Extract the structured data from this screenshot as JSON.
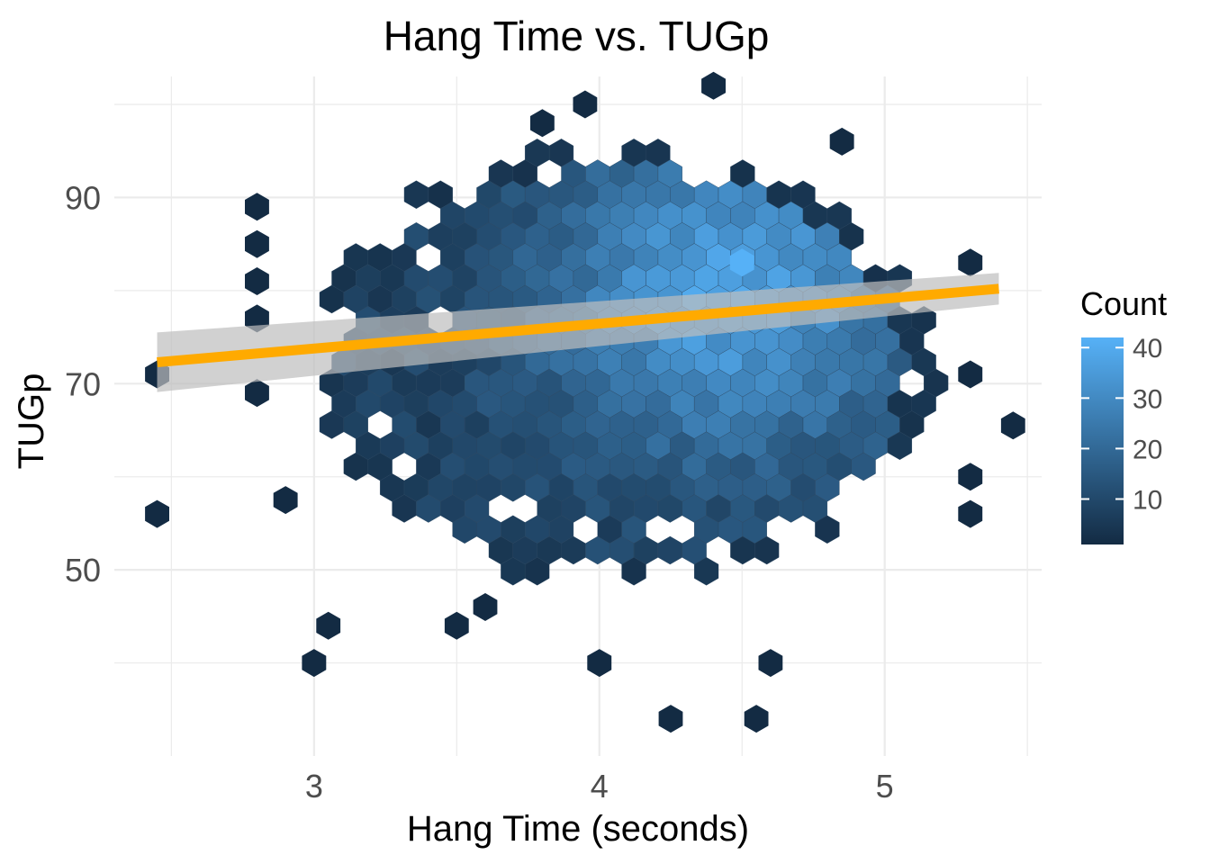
{
  "chart_data": {
    "type": "hexbin",
    "title": "Hang Time vs. TUGp",
    "xlabel": "Hang Time (seconds)",
    "ylabel": "TUGp",
    "xlim": [
      2.3,
      5.55
    ],
    "ylim": [
      30,
      103
    ],
    "x_ticks": [
      3,
      4,
      5
    ],
    "y_ticks": [
      50,
      70,
      90
    ],
    "x_tick_labels": [
      "3",
      "4",
      "5"
    ],
    "y_tick_labels": [
      "50",
      "70",
      "90"
    ],
    "grid": true,
    "legend": {
      "title": "Count",
      "position": "right",
      "ticks": [
        10,
        20,
        30,
        40
      ],
      "tick_labels": [
        "10",
        "20",
        "30",
        "40"
      ],
      "range": [
        1,
        42
      ],
      "color_low": "#132B43",
      "color_high": "#56B1F7"
    },
    "trend_line": {
      "x": [
        2.45,
        5.4
      ],
      "y": [
        72.3,
        80.2
      ],
      "color": "#FFAA00",
      "band_color": "#BEBEBE",
      "band_halfwidth": [
        3.2,
        1.7
      ]
    },
    "hex_peak": {
      "x": 4.5,
      "y": 83,
      "count": 42
    },
    "sparse_hexes": [
      [
        2.45,
        71
      ],
      [
        2.45,
        56
      ],
      [
        2.8,
        89
      ],
      [
        2.8,
        85
      ],
      [
        2.8,
        81
      ],
      [
        2.8,
        77
      ],
      [
        2.8,
        69
      ],
      [
        3.0,
        40
      ],
      [
        3.05,
        44
      ],
      [
        4.0,
        40
      ],
      [
        4.6,
        40
      ],
      [
        4.25,
        34
      ],
      [
        4.55,
        34
      ],
      [
        4.4,
        102
      ],
      [
        3.95,
        100
      ],
      [
        3.8,
        98
      ],
      [
        5.3,
        71
      ],
      [
        5.45,
        65.5
      ],
      [
        5.3,
        56
      ],
      [
        5.3,
        60
      ],
      [
        5.3,
        83
      ],
      [
        2.9,
        57.5
      ],
      [
        3.6,
        46
      ],
      [
        3.5,
        44
      ],
      [
        4.85,
        96
      ]
    ],
    "dense_region": {
      "x_range": [
        2.95,
        5.2
      ],
      "y_range": [
        48,
        96
      ],
      "core_x": 4.45,
      "core_y": 80
    },
    "empty_holes": [
      [
        3.4,
        83
      ],
      [
        3.45,
        77
      ],
      [
        3.25,
        65.5
      ],
      [
        3.35,
        61.5
      ],
      [
        3.7,
        56
      ],
      [
        3.95,
        54
      ],
      [
        4.25,
        54
      ],
      [
        4.55,
        96
      ],
      [
        4.85,
        52
      ]
    ]
  }
}
